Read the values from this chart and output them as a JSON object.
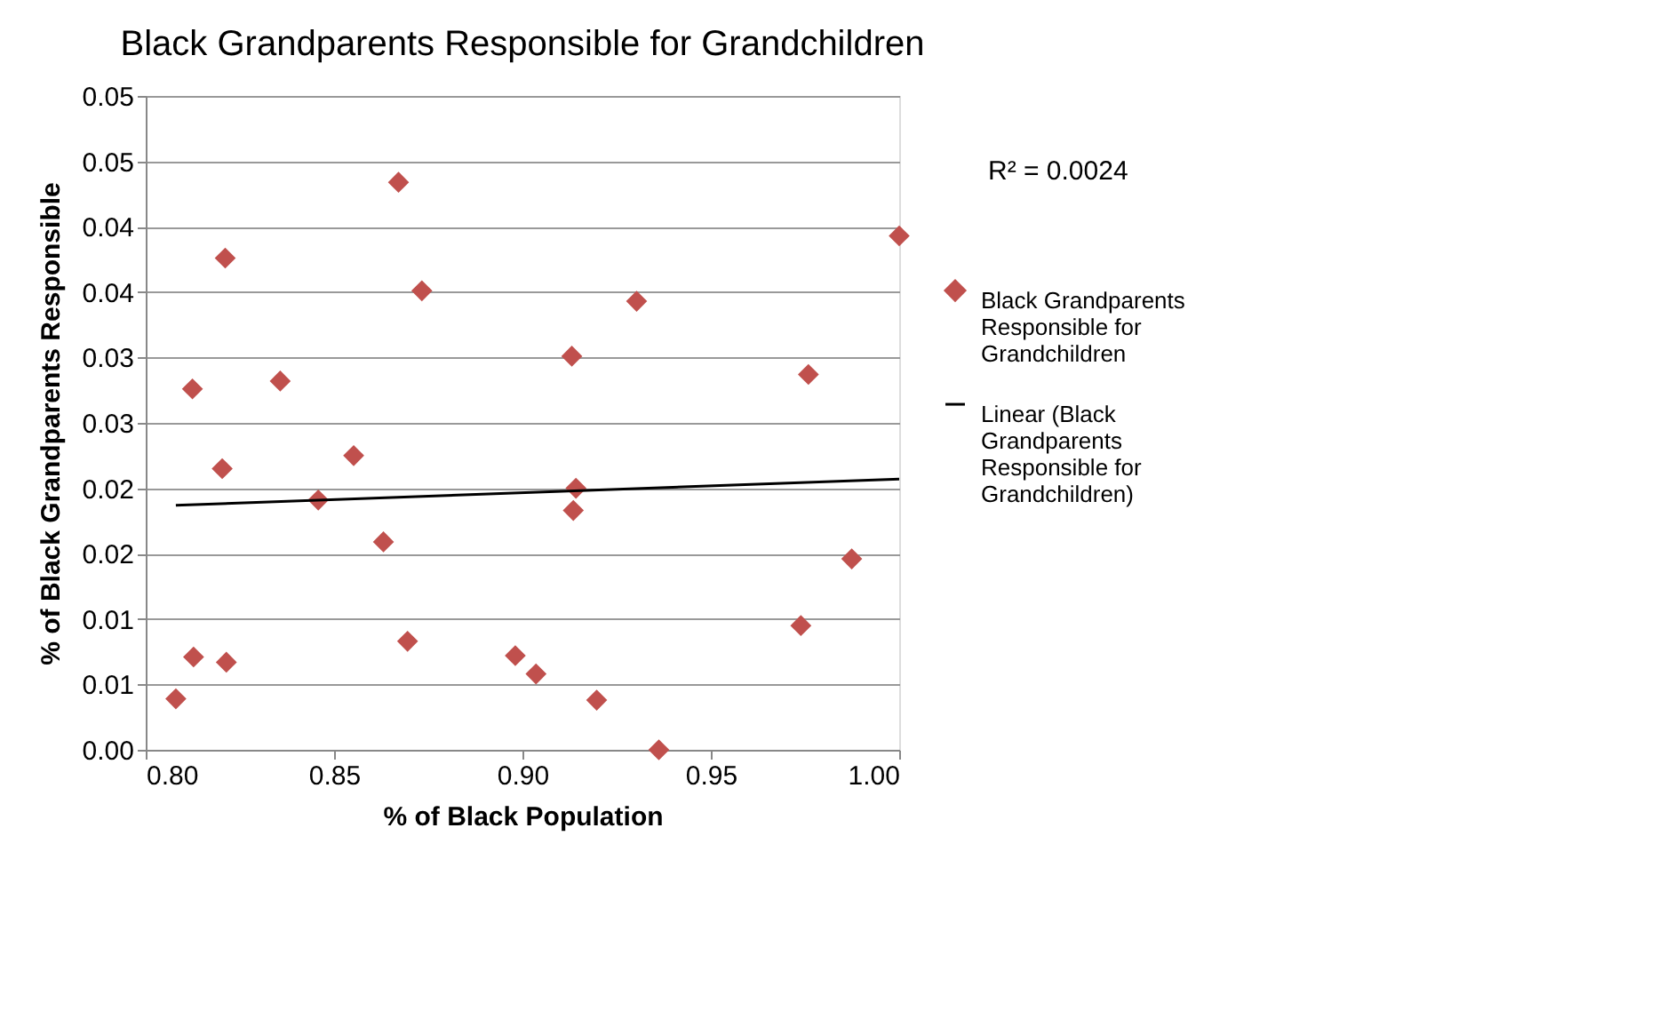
{
  "chart_data": {
    "type": "scatter",
    "title": "Black Grandparents Responsible for Grandchildren",
    "xlabel": "% of Black Population",
    "ylabel": "% of Black Grandparents Responsible",
    "xlim": [
      0.8,
      1.0
    ],
    "xticks": [
      {
        "value": 0.8,
        "label": "0.80"
      },
      {
        "value": 0.85,
        "label": "0.85"
      },
      {
        "value": 0.9,
        "label": "0.90"
      },
      {
        "value": 0.95,
        "label": "0.95"
      },
      {
        "value": 1.0,
        "label": "1.00"
      }
    ],
    "ylim": [
      0,
      0.05
    ],
    "yticks": [
      {
        "value": 0,
        "label": "0.00"
      },
      {
        "value": 0.005,
        "label": "0.01"
      },
      {
        "value": 0.01,
        "label": "0.01"
      },
      {
        "value": 0.015,
        "label": "0.02"
      },
      {
        "value": 0.02,
        "label": "0.02"
      },
      {
        "value": 0.025,
        "label": "0.03"
      },
      {
        "value": 0.03,
        "label": "0.03"
      },
      {
        "value": 0.035,
        "label": "0.04"
      },
      {
        "value": 0.04,
        "label": "0.04"
      },
      {
        "value": 0.045,
        "label": "0.05"
      },
      {
        "value": 0.05,
        "label": "0.05"
      }
    ],
    "grid": "y",
    "legend": "right",
    "annotations": [
      "R² = 0.0024"
    ],
    "series": [
      {
        "name": "Black Grandparents Responsible for Grandchildren",
        "color": "#c0504d",
        "marker": "diamond",
        "x": [
          0.808,
          0.8127,
          0.8214,
          0.8124,
          0.8203,
          0.8211,
          0.8357,
          0.8458,
          0.8552,
          0.8631,
          0.8671,
          0.8733,
          0.8695,
          1.0,
          0.9303,
          0.9131,
          0.9759,
          0.9142,
          0.9135,
          0.9874,
          0.9739,
          0.8981,
          0.9036,
          0.9197,
          0.9362
        ],
        "values": [
          0.0039,
          0.0071,
          0.0067,
          0.0276,
          0.0215,
          0.0376,
          0.0282,
          0.0191,
          0.0225,
          0.0159,
          0.0434,
          0.0351,
          0.0083,
          0.0393,
          0.0343,
          0.0301,
          0.0287,
          0.02,
          0.0183,
          0.0146,
          0.0095,
          0.0072,
          0.0058,
          0.0038,
          0.0
        ]
      },
      {
        "name": "Linear (Black Grandparents Responsible for Grandchildren)",
        "type": "line",
        "color": "#000000",
        "line_style": "solid",
        "marker": "none",
        "x": [
          0.808,
          1.0
        ],
        "values": [
          0.0187,
          0.0207
        ]
      }
    ]
  }
}
